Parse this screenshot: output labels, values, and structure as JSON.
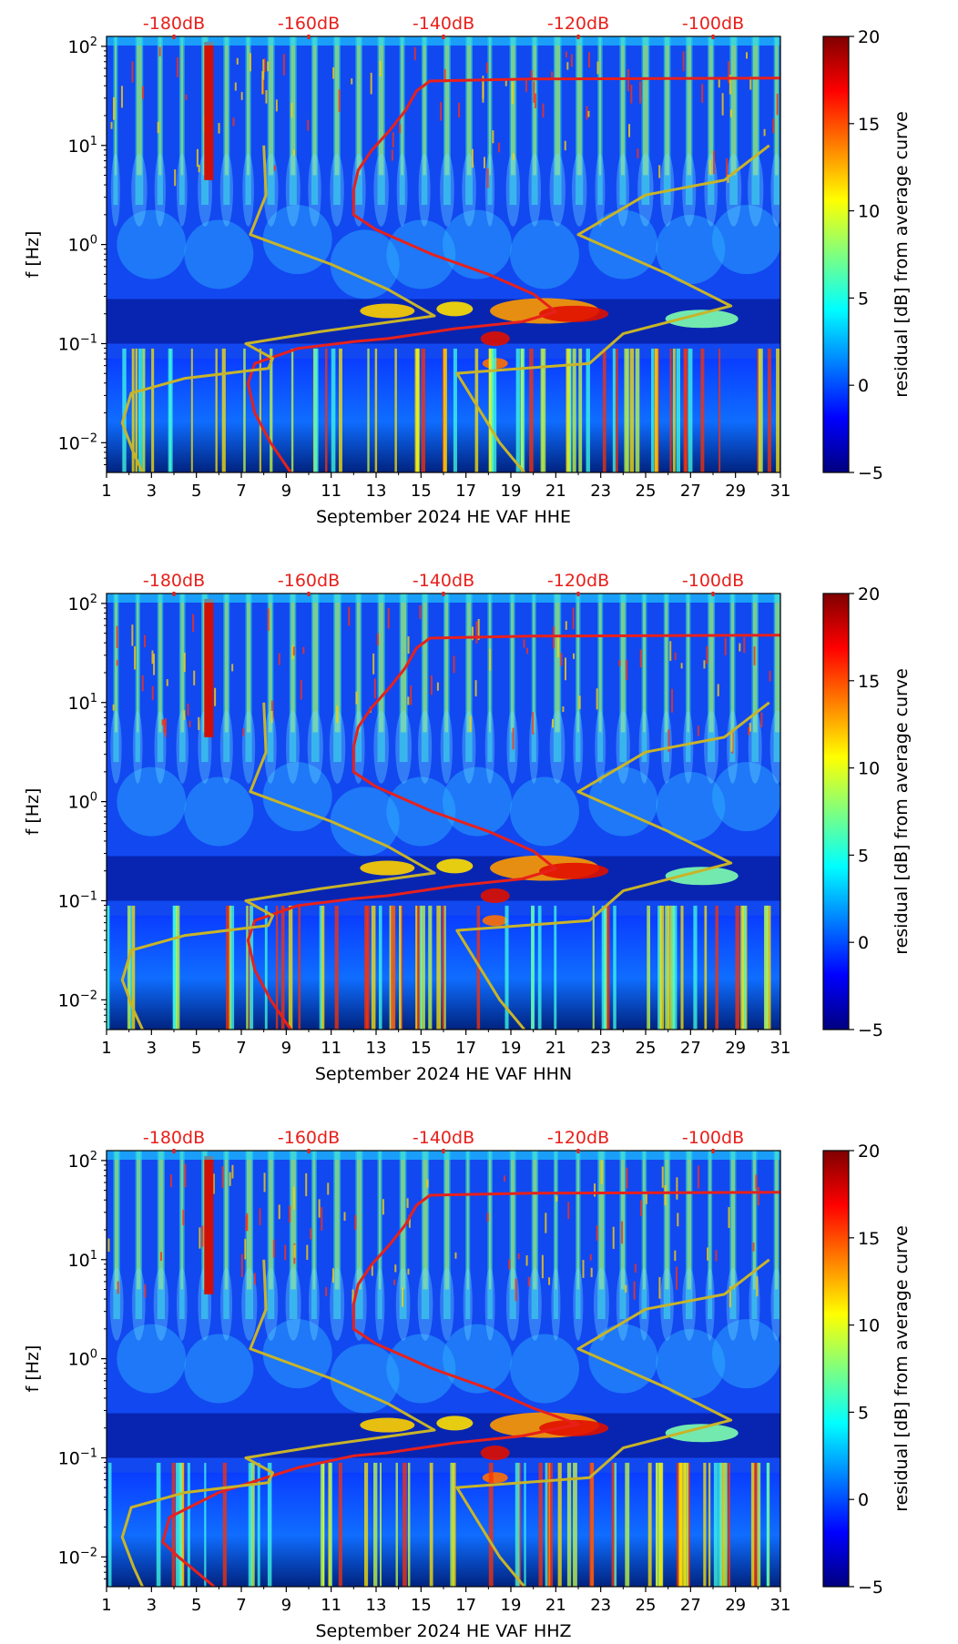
{
  "colormap": [
    "#00007f",
    "#0000ff",
    "#007fff",
    "#00ffff",
    "#7fff7f",
    "#ffff00",
    "#ff7f00",
    "#ff0000",
    "#7f0000"
  ],
  "chart_data": [
    {
      "type": "heatmap",
      "title": "",
      "xlabel": "September 2024 HE VAF  HHE",
      "ylabel": "f [Hz]",
      "colorbar_label": "residual [dB] from average curve",
      "colorbar_range": [
        -5,
        20
      ],
      "colorbar_ticks": [
        "20",
        "15",
        "10",
        "5",
        "0",
        "−5"
      ],
      "x_range": [
        1,
        31
      ],
      "x_ticks": [
        "1",
        "3",
        "5",
        "7",
        "9",
        "11",
        "13",
        "15",
        "17",
        "19",
        "21",
        "23",
        "25",
        "27",
        "29",
        "31"
      ],
      "y_range_log10": [
        -2.3,
        2.1
      ],
      "y_ticks": [
        {
          "base": "10",
          "exp": "2"
        },
        {
          "base": "10",
          "exp": "1"
        },
        {
          "base": "10",
          "exp": "0"
        },
        {
          "base": "10",
          "exp": "−1"
        },
        {
          "base": "10",
          "exp": "−2"
        }
      ],
      "top_axis_labels": [
        "-180dB",
        "-160dB",
        "-140dB",
        "-120dB",
        "-100dB"
      ],
      "series": [
        {
          "name": "mean PSD",
          "color": "#e8201b",
          "points": [
            [
              9.2,
              -2.3
            ],
            [
              8.3,
              -2.0
            ],
            [
              7.6,
              -1.7
            ],
            [
              7.3,
              -1.4
            ],
            [
              7.6,
              -1.2
            ],
            [
              9.5,
              -1.05
            ],
            [
              12.0,
              -0.98
            ],
            [
              13.5,
              -0.95
            ],
            [
              16.5,
              -0.85
            ],
            [
              19.5,
              -0.78
            ],
            [
              21.0,
              -0.68
            ],
            [
              20.0,
              -0.5
            ],
            [
              18.0,
              -0.3
            ],
            [
              15.5,
              -0.1
            ],
            [
              13.0,
              0.15
            ],
            [
              12.0,
              0.3
            ],
            [
              12.0,
              0.55
            ],
            [
              12.2,
              0.75
            ],
            [
              12.8,
              0.95
            ],
            [
              13.6,
              1.15
            ],
            [
              14.3,
              1.35
            ],
            [
              14.8,
              1.55
            ],
            [
              15.4,
              1.65
            ],
            [
              20.0,
              1.67
            ],
            [
              31.0,
              1.68
            ]
          ]
        },
        {
          "name": "low noise model",
          "color": "#c8b428",
          "points": [
            [
              2.6,
              -2.3
            ],
            [
              2.2,
              -2.1
            ],
            [
              1.7,
              -1.8
            ],
            [
              2.1,
              -1.5
            ],
            [
              4.5,
              -1.35
            ],
            [
              8.2,
              -1.25
            ],
            [
              8.4,
              -1.15
            ],
            [
              7.2,
              -1.0
            ],
            [
              10.5,
              -0.88
            ],
            [
              15.6,
              -0.72
            ],
            [
              13.5,
              -0.45
            ],
            [
              11.0,
              -0.2
            ],
            [
              7.4,
              0.1
            ],
            [
              8.1,
              0.5
            ],
            [
              8.0,
              1.0
            ]
          ]
        },
        {
          "name": "high noise model",
          "color": "#c8b428",
          "points": [
            [
              19.6,
              -2.3
            ],
            [
              18.5,
              -2.0
            ],
            [
              16.6,
              -1.3
            ],
            [
              22.5,
              -1.2
            ],
            [
              24.0,
              -0.9
            ],
            [
              28.8,
              -0.62
            ],
            [
              26.0,
              -0.3
            ],
            [
              22.0,
              0.1
            ],
            [
              25.0,
              0.5
            ],
            [
              28.5,
              0.65
            ],
            [
              30.5,
              1.0
            ]
          ]
        }
      ]
    },
    {
      "type": "heatmap",
      "title": "",
      "xlabel": "September 2024 HE VAF  HHN",
      "ylabel": "f [Hz]",
      "colorbar_label": "residual [dB] from average curve",
      "colorbar_range": [
        -5,
        20
      ],
      "colorbar_ticks": [
        "20",
        "15",
        "10",
        "5",
        "0",
        "−5"
      ],
      "x_range": [
        1,
        31
      ],
      "x_ticks": [
        "1",
        "3",
        "5",
        "7",
        "9",
        "11",
        "13",
        "15",
        "17",
        "19",
        "21",
        "23",
        "25",
        "27",
        "29",
        "31"
      ],
      "y_range_log10": [
        -2.3,
        2.1
      ],
      "y_ticks": [
        {
          "base": "10",
          "exp": "2"
        },
        {
          "base": "10",
          "exp": "1"
        },
        {
          "base": "10",
          "exp": "0"
        },
        {
          "base": "10",
          "exp": "−1"
        },
        {
          "base": "10",
          "exp": "−2"
        }
      ],
      "top_axis_labels": [
        "-180dB",
        "-160dB",
        "-140dB",
        "-120dB",
        "-100dB"
      ],
      "series": [
        {
          "name": "mean PSD",
          "color": "#e8201b",
          "points": [
            [
              9.2,
              -2.3
            ],
            [
              8.3,
              -2.0
            ],
            [
              7.6,
              -1.7
            ],
            [
              7.3,
              -1.4
            ],
            [
              7.6,
              -1.2
            ],
            [
              9.5,
              -1.05
            ],
            [
              12.0,
              -0.98
            ],
            [
              13.5,
              -0.95
            ],
            [
              16.5,
              -0.85
            ],
            [
              19.5,
              -0.78
            ],
            [
              21.0,
              -0.68
            ],
            [
              20.0,
              -0.5
            ],
            [
              18.0,
              -0.3
            ],
            [
              15.5,
              -0.1
            ],
            [
              13.0,
              0.15
            ],
            [
              12.0,
              0.3
            ],
            [
              12.0,
              0.55
            ],
            [
              12.2,
              0.75
            ],
            [
              12.8,
              0.95
            ],
            [
              13.6,
              1.15
            ],
            [
              14.3,
              1.35
            ],
            [
              14.8,
              1.55
            ],
            [
              15.4,
              1.65
            ],
            [
              20.0,
              1.67
            ],
            [
              31.0,
              1.68
            ]
          ]
        },
        {
          "name": "low noise model",
          "color": "#c8b428",
          "points": [
            [
              2.6,
              -2.3
            ],
            [
              2.2,
              -2.1
            ],
            [
              1.7,
              -1.8
            ],
            [
              2.1,
              -1.5
            ],
            [
              4.5,
              -1.35
            ],
            [
              8.2,
              -1.25
            ],
            [
              8.4,
              -1.15
            ],
            [
              7.2,
              -1.0
            ],
            [
              10.5,
              -0.88
            ],
            [
              15.6,
              -0.72
            ],
            [
              13.5,
              -0.45
            ],
            [
              11.0,
              -0.2
            ],
            [
              7.4,
              0.1
            ],
            [
              8.1,
              0.5
            ],
            [
              8.0,
              1.0
            ]
          ]
        },
        {
          "name": "high noise model",
          "color": "#c8b428",
          "points": [
            [
              19.6,
              -2.3
            ],
            [
              18.5,
              -2.0
            ],
            [
              16.6,
              -1.3
            ],
            [
              22.5,
              -1.2
            ],
            [
              24.0,
              -0.9
            ],
            [
              28.8,
              -0.62
            ],
            [
              26.0,
              -0.3
            ],
            [
              22.0,
              0.1
            ],
            [
              25.0,
              0.5
            ],
            [
              28.5,
              0.65
            ],
            [
              30.5,
              1.0
            ]
          ]
        }
      ]
    },
    {
      "type": "heatmap",
      "title": "",
      "xlabel": "September 2024 HE VAF  HHZ",
      "ylabel": "f [Hz]",
      "colorbar_label": "residual [dB] from average curve",
      "colorbar_range": [
        -5,
        20
      ],
      "colorbar_ticks": [
        "20",
        "15",
        "10",
        "5",
        "0",
        "−5"
      ],
      "x_range": [
        1,
        31
      ],
      "x_ticks": [
        "1",
        "3",
        "5",
        "7",
        "9",
        "11",
        "13",
        "15",
        "17",
        "19",
        "21",
        "23",
        "25",
        "27",
        "29",
        "31"
      ],
      "y_range_log10": [
        -2.3,
        2.1
      ],
      "y_ticks": [
        {
          "base": "10",
          "exp": "2"
        },
        {
          "base": "10",
          "exp": "1"
        },
        {
          "base": "10",
          "exp": "0"
        },
        {
          "base": "10",
          "exp": "−1"
        },
        {
          "base": "10",
          "exp": "−2"
        }
      ],
      "top_axis_labels": [
        "-180dB",
        "-160dB",
        "-140dB",
        "-120dB",
        "-100dB"
      ],
      "series": [
        {
          "name": "mean PSD",
          "color": "#e8201b",
          "points": [
            [
              5.8,
              -2.3
            ],
            [
              4.2,
              -2.0
            ],
            [
              3.5,
              -1.85
            ],
            [
              3.8,
              -1.6
            ],
            [
              6.0,
              -1.35
            ],
            [
              9.5,
              -1.1
            ],
            [
              12.0,
              -0.98
            ],
            [
              13.5,
              -0.95
            ],
            [
              16.5,
              -0.85
            ],
            [
              19.5,
              -0.78
            ],
            [
              22.0,
              -0.66
            ],
            [
              20.0,
              -0.5
            ],
            [
              18.0,
              -0.3
            ],
            [
              15.5,
              -0.1
            ],
            [
              13.0,
              0.15
            ],
            [
              12.0,
              0.3
            ],
            [
              12.0,
              0.55
            ],
            [
              12.2,
              0.75
            ],
            [
              12.8,
              0.95
            ],
            [
              13.6,
              1.15
            ],
            [
              14.3,
              1.35
            ],
            [
              14.8,
              1.55
            ],
            [
              15.4,
              1.65
            ],
            [
              20.0,
              1.67
            ],
            [
              31.0,
              1.68
            ]
          ]
        },
        {
          "name": "low noise model",
          "color": "#c8b428",
          "points": [
            [
              2.6,
              -2.3
            ],
            [
              2.2,
              -2.1
            ],
            [
              1.7,
              -1.8
            ],
            [
              2.1,
              -1.5
            ],
            [
              4.5,
              -1.35
            ],
            [
              8.2,
              -1.25
            ],
            [
              8.4,
              -1.15
            ],
            [
              7.2,
              -1.0
            ],
            [
              10.5,
              -0.88
            ],
            [
              15.6,
              -0.72
            ],
            [
              13.5,
              -0.45
            ],
            [
              11.0,
              -0.2
            ],
            [
              7.4,
              0.1
            ],
            [
              8.1,
              0.5
            ],
            [
              8.0,
              1.0
            ]
          ]
        },
        {
          "name": "high noise model",
          "color": "#c8b428",
          "points": [
            [
              19.6,
              -2.3
            ],
            [
              18.5,
              -2.0
            ],
            [
              16.6,
              -1.3
            ],
            [
              22.5,
              -1.2
            ],
            [
              24.0,
              -0.9
            ],
            [
              28.8,
              -0.62
            ],
            [
              26.0,
              -0.3
            ],
            [
              22.0,
              0.1
            ],
            [
              25.0,
              0.5
            ],
            [
              28.5,
              0.65
            ],
            [
              30.5,
              1.0
            ]
          ]
        }
      ]
    }
  ]
}
